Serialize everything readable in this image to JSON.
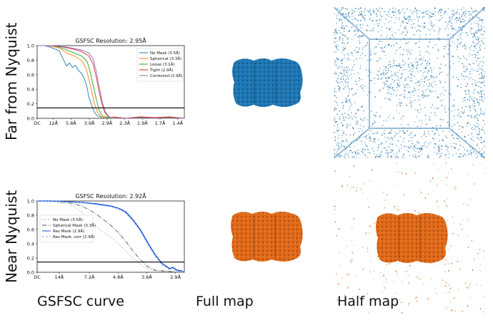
{
  "row_labels": [
    "Far from Nyquist",
    "Near Nyquist"
  ],
  "column_labels": [
    "GSFSC curve",
    "Full map",
    "Half map"
  ],
  "colors": {
    "blue_map": "#1f77b4",
    "orange_map": "#e06a1a",
    "threshold": "#000000"
  },
  "chart_data": [
    {
      "type": "line",
      "title": "GSFSC Resolution: 2.95Å",
      "xtick_labels": [
        "DC",
        "12Å",
        "5.8Å",
        "3.9Å",
        "2.9Å",
        "2.3Å",
        "1.9Å",
        "1.7Å",
        "1.4Å"
      ],
      "ytick_labels": [
        "0.0",
        "0.2",
        "0.4",
        "0.6",
        "0.8",
        "1.0"
      ],
      "ylim": [
        0,
        1
      ],
      "xlim": [
        0,
        1
      ],
      "threshold": 0.143,
      "legend_placement": "top-right",
      "series": [
        {
          "name": "No Mask (3.5Å)",
          "color": "#1f77b4",
          "dash": "",
          "x": [
            0,
            0.05,
            0.1,
            0.15,
            0.18,
            0.2,
            0.22,
            0.24,
            0.26,
            0.28,
            0.3,
            0.32,
            0.34,
            0.35,
            0.37,
            0.39,
            0.41,
            0.43,
            0.45,
            0.47,
            0.5,
            0.55,
            0.6,
            0.7,
            0.8,
            0.9,
            1.0
          ],
          "y": [
            1.0,
            1.0,
            0.97,
            0.93,
            0.8,
            0.72,
            0.76,
            0.7,
            0.73,
            0.66,
            0.62,
            0.55,
            0.42,
            0.3,
            0.18,
            0.08,
            0.03,
            0.02,
            0.01,
            0.02,
            0.0,
            0.01,
            0.0,
            0.01,
            0.0,
            0.01,
            0.0
          ]
        },
        {
          "name": "Spherical (3.3Å)",
          "color": "#ff7f0e",
          "dash": "",
          "x": [
            0,
            0.05,
            0.1,
            0.15,
            0.2,
            0.25,
            0.3,
            0.33,
            0.35,
            0.37,
            0.39,
            0.41,
            0.43,
            0.45,
            0.47,
            0.5,
            0.55,
            0.6,
            0.7,
            0.8,
            0.9,
            1.0
          ],
          "y": [
            1.0,
            1.0,
            0.99,
            0.97,
            0.9,
            0.86,
            0.8,
            0.7,
            0.55,
            0.38,
            0.2,
            0.08,
            0.03,
            0.01,
            0.02,
            0.0,
            0.01,
            0.0,
            0.01,
            0.0,
            0.01,
            0.0
          ]
        },
        {
          "name": "Loose (3.1Å)",
          "color": "#2ca02c",
          "dash": "",
          "x": [
            0,
            0.05,
            0.1,
            0.15,
            0.2,
            0.25,
            0.3,
            0.34,
            0.36,
            0.38,
            0.4,
            0.42,
            0.44,
            0.46,
            0.48,
            0.5,
            0.55,
            0.6,
            0.7,
            0.8,
            0.9,
            1.0
          ],
          "y": [
            1.0,
            1.0,
            1.0,
            0.98,
            0.94,
            0.9,
            0.86,
            0.78,
            0.64,
            0.46,
            0.28,
            0.12,
            0.04,
            0.02,
            0.01,
            0.0,
            0.01,
            0.0,
            0.01,
            0.0,
            0.01,
            0.0
          ]
        },
        {
          "name": "Tight (2.9Å)",
          "color": "#d62728",
          "dash": "",
          "x": [
            0,
            0.05,
            0.1,
            0.15,
            0.2,
            0.25,
            0.3,
            0.35,
            0.38,
            0.4,
            0.42,
            0.44,
            0.46,
            0.48,
            0.5,
            0.52,
            0.55,
            0.6,
            0.7,
            0.8,
            0.9,
            1.0
          ],
          "y": [
            1.0,
            1.0,
            1.0,
            0.99,
            0.97,
            0.95,
            0.92,
            0.86,
            0.75,
            0.58,
            0.38,
            0.2,
            0.08,
            0.03,
            0.01,
            0.02,
            0.01,
            0.0,
            0.02,
            0.01,
            0.02,
            0.0
          ]
        },
        {
          "name": "Corrected (2.9Å)",
          "color": "#9467bd",
          "dash": "",
          "x": [
            0,
            0.05,
            0.1,
            0.15,
            0.2,
            0.25,
            0.3,
            0.35,
            0.38,
            0.4,
            0.42,
            0.44,
            0.46,
            0.48,
            0.5,
            0.52,
            0.55,
            0.6,
            0.7,
            0.8,
            0.9,
            1.0
          ],
          "y": [
            1.0,
            1.0,
            1.0,
            0.99,
            0.98,
            0.96,
            0.94,
            0.9,
            0.82,
            0.66,
            0.45,
            0.25,
            0.1,
            0.04,
            0.01,
            0.0,
            0.0,
            0.0,
            0.0,
            0.0,
            0.0,
            0.0
          ]
        }
      ]
    },
    {
      "type": "line",
      "title": "GSFSC Resolution: 2.92Å",
      "xtick_labels": [
        "DC",
        "14Å",
        "7.2Å",
        "4.8Å",
        "3.6Å",
        "2.9Å"
      ],
      "ytick_labels": [
        "0.0",
        "0.2",
        "0.4",
        "0.6",
        "0.8",
        "1.0"
      ],
      "ylim": [
        0,
        1
      ],
      "xlim": [
        0,
        1
      ],
      "threshold": 0.143,
      "legend_placement": "center-left",
      "series": [
        {
          "name": "No Mask (3.5Å)",
          "color": "#b0b0b0",
          "dash": "2,2",
          "x": [
            0,
            0.1,
            0.2,
            0.25,
            0.3,
            0.35,
            0.4,
            0.45,
            0.5,
            0.55,
            0.6,
            0.65,
            0.7,
            0.72,
            0.75,
            0.78,
            0.8,
            0.85,
            0.9,
            0.95,
            1.0
          ],
          "y": [
            1.0,
            0.99,
            0.96,
            0.92,
            0.85,
            0.75,
            0.65,
            0.56,
            0.5,
            0.4,
            0.3,
            0.2,
            0.12,
            0.08,
            0.05,
            0.03,
            0.02,
            0.01,
            0.02,
            0.01,
            0.0
          ]
        },
        {
          "name": "Spherical Mask (3.3Å)",
          "color": "#555555",
          "dash": "6,2,1,2",
          "x": [
            0,
            0.1,
            0.2,
            0.25,
            0.3,
            0.35,
            0.4,
            0.45,
            0.5,
            0.55,
            0.6,
            0.65,
            0.7,
            0.75,
            0.78,
            0.8,
            0.85,
            0.9,
            0.95,
            1.0
          ],
          "y": [
            1.0,
            1.0,
            0.98,
            0.96,
            0.93,
            0.88,
            0.82,
            0.74,
            0.66,
            0.56,
            0.44,
            0.3,
            0.18,
            0.08,
            0.05,
            0.03,
            0.02,
            0.01,
            0.0,
            0.0
          ]
        },
        {
          "name": "Res Mask (2.9Å)",
          "color": "#1f4fd1",
          "dash": "",
          "x": [
            0,
            0.1,
            0.2,
            0.3,
            0.4,
            0.5,
            0.55,
            0.6,
            0.65,
            0.7,
            0.75,
            0.8,
            0.85,
            0.88,
            0.9,
            0.92,
            0.95,
            0.98,
            1.0
          ],
          "y": [
            1.0,
            1.0,
            0.99,
            0.98,
            0.96,
            0.93,
            0.9,
            0.85,
            0.74,
            0.6,
            0.42,
            0.25,
            0.12,
            0.08,
            0.05,
            0.07,
            0.03,
            0.02,
            0.0
          ]
        },
        {
          "name": "Res Mask, corr (2.9Å)",
          "color": "#6fa8ff",
          "dash": "3,2",
          "x": [
            0,
            0.1,
            0.2,
            0.3,
            0.4,
            0.5,
            0.55,
            0.6,
            0.65,
            0.7,
            0.75,
            0.8,
            0.85,
            0.88,
            0.9,
            0.92,
            0.95,
            0.98,
            1.0
          ],
          "y": [
            1.0,
            1.0,
            0.99,
            0.98,
            0.95,
            0.92,
            0.89,
            0.83,
            0.72,
            0.58,
            0.4,
            0.23,
            0.1,
            0.06,
            0.04,
            0.05,
            0.02,
            0.01,
            0.0
          ]
        }
      ]
    }
  ]
}
